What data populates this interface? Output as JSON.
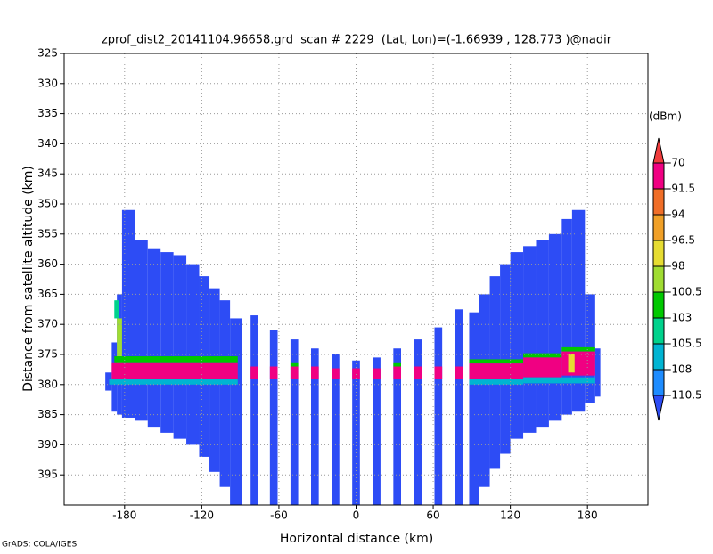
{
  "chart_data": {
    "type": "heatmap",
    "title": "zprof_dist2_20141104.96658.grd  scan # 2229  (Lat, Lon)=(-1.66939 , 128.773 )@nadir",
    "xlabel": "Horizontal distance (km)",
    "ylabel": "Distance from satellite altitude (km)",
    "credit": "GrADS: COLA/IGES",
    "xlim": [
      -227,
      227
    ],
    "ylim": [
      400,
      325
    ],
    "xticks": [
      -180,
      -120,
      -60,
      0,
      60,
      120,
      180
    ],
    "yticks": [
      325,
      330,
      335,
      340,
      345,
      350,
      355,
      360,
      365,
      370,
      375,
      380,
      385,
      390,
      395
    ],
    "grid": true,
    "colorbar": {
      "label": "(dBm)",
      "levels": [
        -110.5,
        -108,
        -105.5,
        -103,
        -100.5,
        -98,
        -96.5,
        -94,
        -91.5,
        -70
      ],
      "colors": [
        "#2d4cf5",
        "#1e8cff",
        "#00b4d2",
        "#00d28c",
        "#00c800",
        "#a0dc32",
        "#e6dc32",
        "#f0a028",
        "#f06e28",
        "#f00082",
        "#f03c3c"
      ]
    },
    "regions": [
      {
        "x": [
          -195,
          -190
        ],
        "y": [
          378,
          381
        ],
        "value": -115
      },
      {
        "x": [
          -190,
          -186
        ],
        "y": [
          373,
          384.5
        ],
        "value": -115
      },
      {
        "x": [
          -186,
          -182
        ],
        "y": [
          365,
          385
        ],
        "value": -115
      },
      {
        "x": [
          -182,
          -172
        ],
        "y": [
          351,
          385.5
        ],
        "value": -115
      },
      {
        "x": [
          -172,
          -162
        ],
        "y": [
          356,
          386
        ],
        "value": -115
      },
      {
        "x": [
          -162,
          -152
        ],
        "y": [
          357.5,
          387
        ],
        "value": -115
      },
      {
        "x": [
          -152,
          -142
        ],
        "y": [
          358,
          388
        ],
        "value": -115
      },
      {
        "x": [
          -142,
          -132
        ],
        "y": [
          358.5,
          389
        ],
        "value": -115
      },
      {
        "x": [
          -132,
          -122
        ],
        "y": [
          360,
          390
        ],
        "value": -115
      },
      {
        "x": [
          -122,
          -114
        ],
        "y": [
          362,
          392
        ],
        "value": -115
      },
      {
        "x": [
          -114,
          -106
        ],
        "y": [
          364,
          394.5
        ],
        "value": -115
      },
      {
        "x": [
          -106,
          -98
        ],
        "y": [
          366,
          397
        ],
        "value": -115
      },
      {
        "x": [
          -98,
          -89
        ],
        "y": [
          369,
          400
        ],
        "value": -115
      },
      {
        "x": [
          -82,
          -76
        ],
        "y": [
          368.5,
          400
        ],
        "value": -115
      },
      {
        "x": [
          -67,
          -61
        ],
        "y": [
          371,
          400
        ],
        "value": -115
      },
      {
        "x": [
          -51,
          -45
        ],
        "y": [
          372.5,
          400
        ],
        "value": -115
      },
      {
        "x": [
          -35,
          -29
        ],
        "y": [
          374,
          400
        ],
        "value": -115
      },
      {
        "x": [
          -19,
          -13
        ],
        "y": [
          375,
          400
        ],
        "value": -115
      },
      {
        "x": [
          -3,
          3
        ],
        "y": [
          376,
          400
        ],
        "value": -115
      },
      {
        "x": [
          13,
          19
        ],
        "y": [
          375.5,
          400
        ],
        "value": -115
      },
      {
        "x": [
          29,
          35
        ],
        "y": [
          374,
          400
        ],
        "value": -115
      },
      {
        "x": [
          45,
          51
        ],
        "y": [
          372.5,
          400
        ],
        "value": -115
      },
      {
        "x": [
          61,
          67
        ],
        "y": [
          370.5,
          400
        ],
        "value": -115
      },
      {
        "x": [
          77,
          83
        ],
        "y": [
          367.5,
          400
        ],
        "value": -115
      },
      {
        "x": [
          88,
          96
        ],
        "y": [
          368,
          400
        ],
        "value": -115
      },
      {
        "x": [
          96,
          104
        ],
        "y": [
          365,
          397
        ],
        "value": -115
      },
      {
        "x": [
          104,
          112
        ],
        "y": [
          362,
          394
        ],
        "value": -115
      },
      {
        "x": [
          112,
          120
        ],
        "y": [
          360,
          391.5
        ],
        "value": -115
      },
      {
        "x": [
          120,
          130
        ],
        "y": [
          358,
          389
        ],
        "value": -115
      },
      {
        "x": [
          130,
          140
        ],
        "y": [
          357,
          388
        ],
        "value": -115
      },
      {
        "x": [
          140,
          150
        ],
        "y": [
          356,
          387
        ],
        "value": -115
      },
      {
        "x": [
          150,
          160
        ],
        "y": [
          355,
          386
        ],
        "value": -115
      },
      {
        "x": [
          160,
          168
        ],
        "y": [
          352.5,
          385
        ],
        "value": -115
      },
      {
        "x": [
          168,
          178
        ],
        "y": [
          351,
          384.5
        ],
        "value": -115
      },
      {
        "x": [
          178,
          186
        ],
        "y": [
          365,
          383
        ],
        "value": -115
      },
      {
        "x": [
          186,
          190
        ],
        "y": [
          374,
          382
        ],
        "value": -115
      },
      {
        "x": [
          -188,
          -184
        ],
        "y": [
          366,
          369
        ],
        "value": -104
      },
      {
        "x": [
          -186,
          -182
        ],
        "y": [
          369,
          376.3
        ],
        "value": -99
      },
      {
        "x": [
          -188,
          -92
        ],
        "y": [
          375.3,
          376.3
        ],
        "value": -102
      },
      {
        "x": [
          -190,
          -92
        ],
        "y": [
          376.3,
          379
        ],
        "value": -80
      },
      {
        "x": [
          -192,
          -92
        ],
        "y": [
          379,
          380
        ],
        "value": -107
      },
      {
        "x": [
          -82,
          -76
        ],
        "y": [
          377,
          379
        ],
        "value": -80
      },
      {
        "x": [
          -67,
          -61
        ],
        "y": [
          377,
          379
        ],
        "value": -80
      },
      {
        "x": [
          -51,
          -45
        ],
        "y": [
          376.3,
          377
        ],
        "value": -102
      },
      {
        "x": [
          -51,
          -45
        ],
        "y": [
          377,
          379
        ],
        "value": -80
      },
      {
        "x": [
          -35,
          -29
        ],
        "y": [
          377,
          379
        ],
        "value": -80
      },
      {
        "x": [
          -19,
          -13
        ],
        "y": [
          377.3,
          379
        ],
        "value": -80
      },
      {
        "x": [
          -3,
          3
        ],
        "y": [
          377.3,
          379
        ],
        "value": -80
      },
      {
        "x": [
          13,
          19
        ],
        "y": [
          377.3,
          379
        ],
        "value": -80
      },
      {
        "x": [
          29,
          35
        ],
        "y": [
          376.3,
          377
        ],
        "value": -102
      },
      {
        "x": [
          29,
          35
        ],
        "y": [
          377,
          379
        ],
        "value": -80
      },
      {
        "x": [
          45,
          51
        ],
        "y": [
          377,
          379
        ],
        "value": -80
      },
      {
        "x": [
          61,
          67
        ],
        "y": [
          377,
          379
        ],
        "value": -80
      },
      {
        "x": [
          77,
          83
        ],
        "y": [
          377,
          379
        ],
        "value": -80
      },
      {
        "x": [
          88,
          130
        ],
        "y": [
          375.8,
          376.5
        ],
        "value": -102
      },
      {
        "x": [
          88,
          130
        ],
        "y": [
          376.5,
          379
        ],
        "value": -80
      },
      {
        "x": [
          88,
          130
        ],
        "y": [
          379,
          380
        ],
        "value": -107
      },
      {
        "x": [
          130,
          160
        ],
        "y": [
          374.8,
          375.5
        ],
        "value": -102
      },
      {
        "x": [
          130,
          160
        ],
        "y": [
          375.5,
          378.8
        ],
        "value": -80
      },
      {
        "x": [
          160,
          186
        ],
        "y": [
          373.8,
          374.5
        ],
        "value": -102
      },
      {
        "x": [
          160,
          186
        ],
        "y": [
          374.5,
          378.5
        ],
        "value": -80
      },
      {
        "x": [
          130,
          186
        ],
        "y": [
          378.8,
          379.8
        ],
        "value": -107
      },
      {
        "x": [
          165,
          170
        ],
        "y": [
          375,
          378
        ],
        "value": -97
      }
    ]
  }
}
